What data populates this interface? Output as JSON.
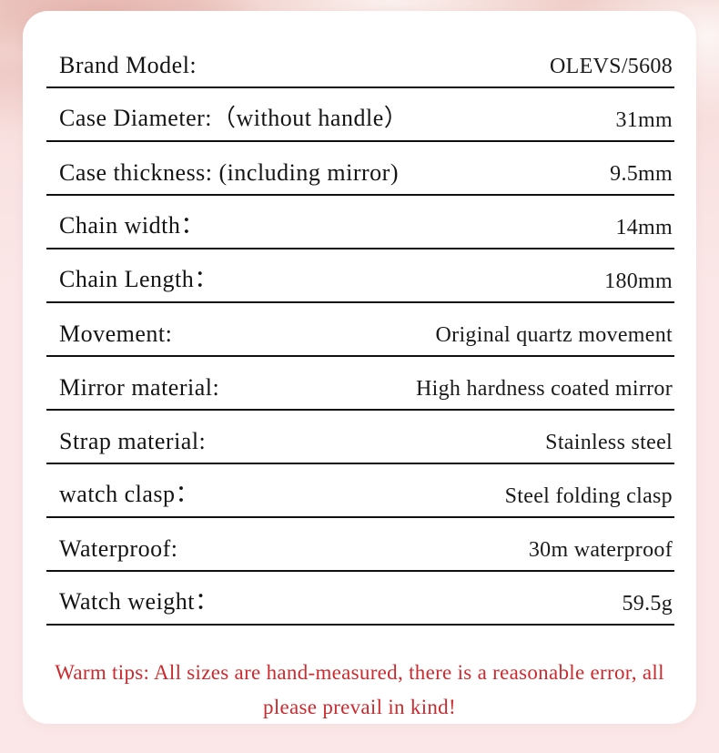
{
  "page": {
    "background_color": "#fbe7e7",
    "card_background_color": "#ffffff",
    "divider_color": "#101010",
    "text_color": "#141414"
  },
  "spec_table": {
    "rows": [
      {
        "label": "Brand Model:",
        "value": "OLEVS/5608"
      },
      {
        "label": "Case Diameter:（without handle）",
        "value": "31mm"
      },
      {
        "label": "Case thickness: (including mirror)",
        "value": "9.5mm"
      },
      {
        "label": "Chain width：",
        "value": "14mm"
      },
      {
        "label": "Chain Length：",
        "value": "180mm"
      },
      {
        "label": "Movement:",
        "value": "Original quartz movement"
      },
      {
        "label": "Mirror material:",
        "value": "High hardness coated mirror"
      },
      {
        "label": "Strap material:",
        "value": "Stainless steel"
      },
      {
        "label": "watch clasp：",
        "value": "Steel folding clasp"
      },
      {
        "label": "Waterproof:",
        "value": "30m waterproof"
      },
      {
        "label": "Watch weight：",
        "value": "59.5g"
      }
    ]
  },
  "warm_tips": {
    "text": "Warm tips: All sizes are hand-measured, there is a reasonable error, all please prevail in kind!",
    "color": "#cc2a2e"
  }
}
